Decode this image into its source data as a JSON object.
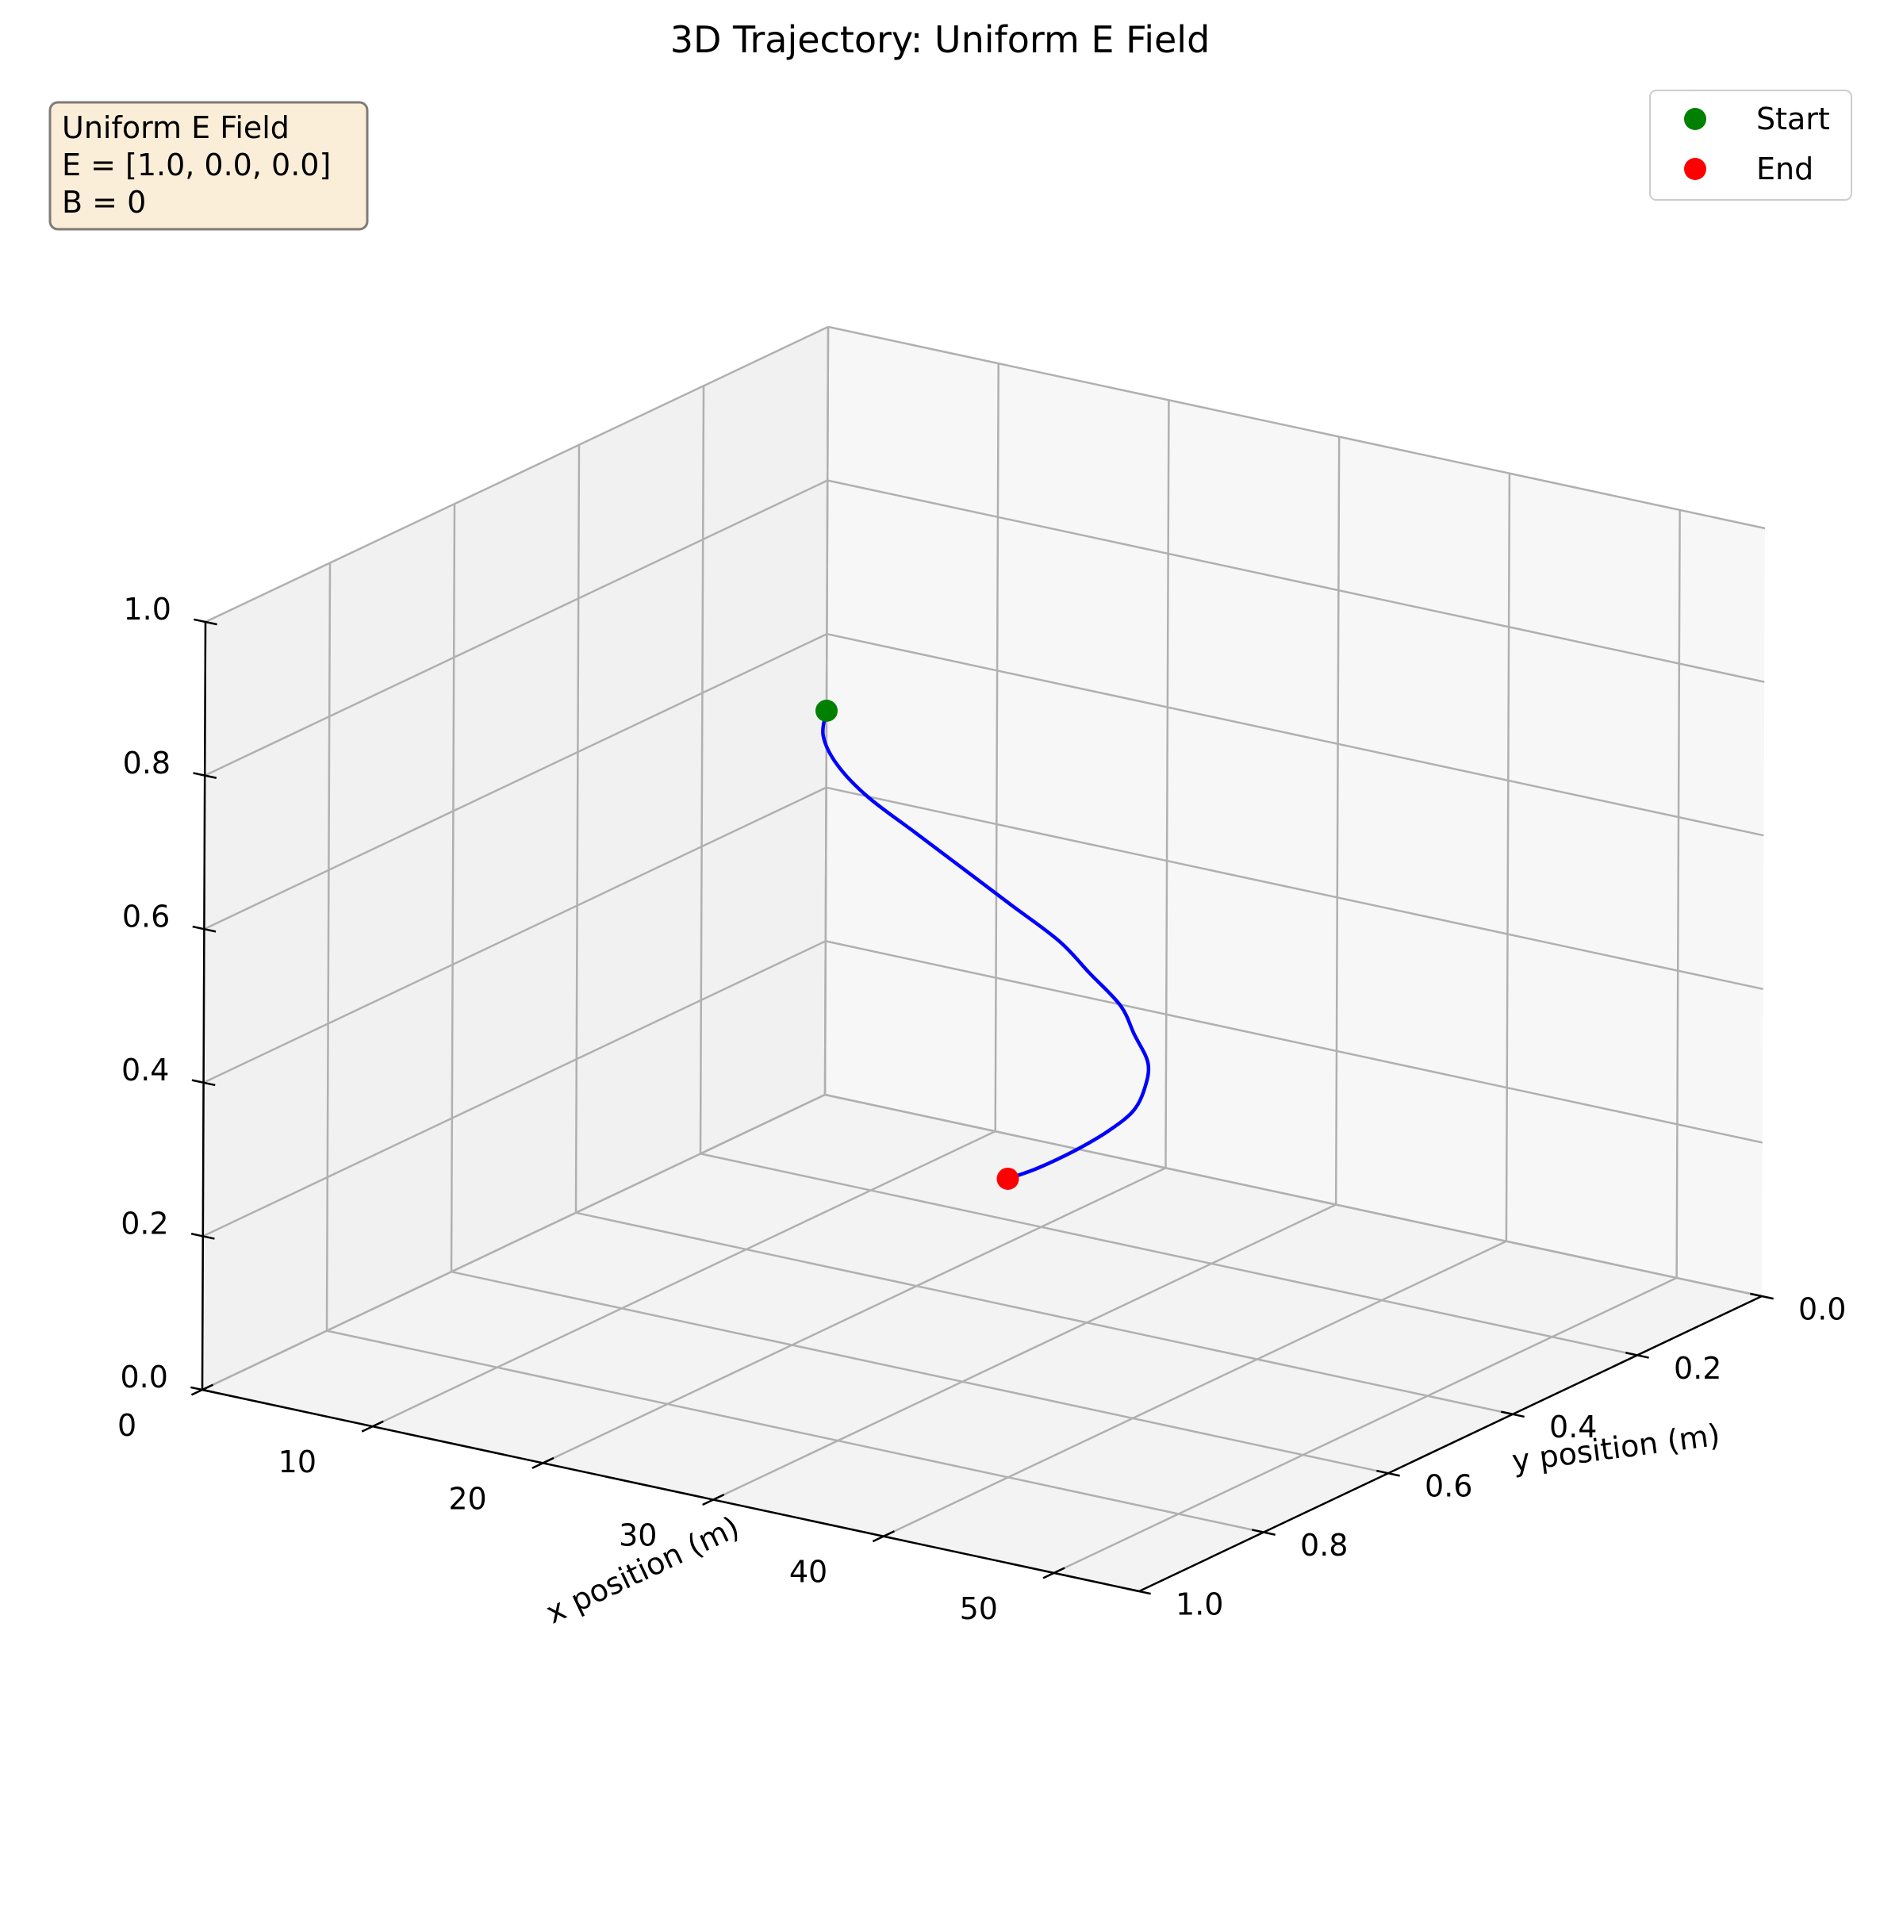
{
  "chart_data": {
    "type": "line",
    "projection": "3d",
    "title": "3D Trajectory: Uniform E Field",
    "xlabel": "x position (m)",
    "ylabel": "y position (m)",
    "zlabel": "",
    "xlim": [
      0,
      55
    ],
    "ylim": [
      0,
      1
    ],
    "zlim": [
      0,
      1
    ],
    "grid": true,
    "x_ticks": [
      "0",
      "10",
      "20",
      "30",
      "40",
      "50"
    ],
    "y_ticks": [
      "0.0",
      "0.2",
      "0.4",
      "0.6",
      "0.8",
      "1.0"
    ],
    "z_ticks": [
      "0.0",
      "0.2",
      "0.4",
      "0.6",
      "0.8",
      "1.0"
    ],
    "info_box": {
      "lines": [
        "Uniform E Field",
        "E = [1.0, 0.0, 0.0]",
        "B = 0"
      ],
      "facecolor": "#f5deb3"
    },
    "legend": {
      "placement": "upper right",
      "entries": [
        {
          "label": "Start",
          "color": "#008000"
        },
        {
          "label": "End",
          "color": "#ff0000"
        }
      ]
    },
    "trajectory": {
      "color": "#0000ff",
      "x": [
        0,
        2,
        5,
        9,
        14,
        19,
        24,
        29,
        33,
        37,
        40,
        43,
        45,
        46.5,
        47.2,
        47.5,
        47.5,
        47.2
      ],
      "y": [
        0,
        0.06,
        0.12,
        0.18,
        0.24,
        0.3,
        0.36,
        0.42,
        0.48,
        0.54,
        0.6,
        0.66,
        0.72,
        0.78,
        0.84,
        0.9,
        0.96,
        1.0
      ],
      "z": [
        0.5,
        0.5,
        0.5,
        0.5,
        0.5,
        0.5,
        0.5,
        0.5,
        0.5,
        0.5,
        0.5,
        0.5,
        0.5,
        0.5,
        0.5,
        0.5,
        0.5,
        0.5
      ]
    },
    "start": {
      "x": 0,
      "y": 0,
      "z": 0.5,
      "color": "#008000"
    },
    "end": {
      "x": 47.2,
      "y": 1.0,
      "z": 0.5,
      "color": "#ff0000"
    }
  }
}
